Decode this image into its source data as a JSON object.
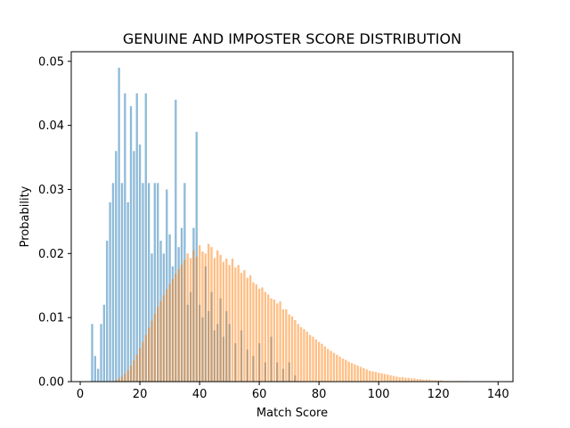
{
  "chart_data": {
    "type": "bar",
    "title": "GENUINE AND IMPOSTER SCORE DISTRIBUTION",
    "xlabel": "Match Score",
    "ylabel": "Probability",
    "xlim": [
      -3,
      145
    ],
    "ylim": [
      0,
      0.0515
    ],
    "x_ticks": [
      0,
      20,
      40,
      60,
      80,
      100,
      120,
      140
    ],
    "y_ticks": [
      0.0,
      0.01,
      0.02,
      0.03,
      0.04,
      0.05
    ],
    "x_tick_labels": [
      "0",
      "20",
      "40",
      "60",
      "80",
      "100",
      "120",
      "140"
    ],
    "y_tick_labels": [
      "0.00",
      "0.01",
      "0.02",
      "0.03",
      "0.04",
      "0.05"
    ],
    "bin_width": 0.7,
    "grid": false,
    "legend": "none",
    "series": [
      {
        "color": "#1f77b4",
        "opacity": 0.5,
        "x": [
          4,
          5,
          6,
          7,
          8,
          9,
          10,
          11,
          12,
          13,
          14,
          15,
          16,
          17,
          18,
          19,
          20,
          21,
          22,
          23,
          24,
          25,
          26,
          27,
          28,
          29,
          30,
          31,
          32,
          33,
          34,
          35,
          36,
          37,
          38,
          39,
          40,
          41,
          42,
          43,
          44,
          45,
          46,
          47,
          48,
          49,
          50,
          52,
          54,
          56,
          58,
          60,
          62,
          64,
          66,
          68,
          70,
          72
        ],
        "values": [
          0.009,
          0.004,
          0.002,
          0.009,
          0.012,
          0.022,
          0.028,
          0.031,
          0.036,
          0.049,
          0.031,
          0.045,
          0.028,
          0.043,
          0.036,
          0.045,
          0.037,
          0.031,
          0.045,
          0.031,
          0.02,
          0.031,
          0.031,
          0.022,
          0.02,
          0.03,
          0.023,
          0.018,
          0.044,
          0.021,
          0.024,
          0.031,
          0.012,
          0.014,
          0.024,
          0.039,
          0.012,
          0.01,
          0.018,
          0.011,
          0.014,
          0.008,
          0.009,
          0.013,
          0.007,
          0.011,
          0.009,
          0.006,
          0.008,
          0.005,
          0.004,
          0.006,
          0.003,
          0.007,
          0.003,
          0.002,
          0.003,
          0.001
        ]
      },
      {
        "color": "#ff7f0e",
        "opacity": 0.5,
        "x": [
          12,
          13,
          14,
          15,
          16,
          17,
          18,
          19,
          20,
          21,
          22,
          23,
          24,
          25,
          26,
          27,
          28,
          29,
          30,
          31,
          32,
          33,
          34,
          35,
          36,
          37,
          38,
          39,
          40,
          41,
          42,
          43,
          44,
          45,
          46,
          47,
          48,
          49,
          50,
          51,
          52,
          53,
          54,
          55,
          56,
          57,
          58,
          59,
          60,
          61,
          62,
          63,
          64,
          65,
          66,
          67,
          68,
          69,
          70,
          71,
          72,
          73,
          74,
          75,
          76,
          77,
          78,
          79,
          80,
          81,
          82,
          83,
          84,
          85,
          86,
          87,
          88,
          89,
          90,
          91,
          92,
          93,
          94,
          95,
          96,
          97,
          98,
          99,
          100,
          101,
          102,
          103,
          104,
          105,
          106,
          107,
          108,
          109,
          110,
          111,
          112,
          113,
          114,
          115,
          116,
          117,
          118,
          119,
          120,
          121,
          122,
          123,
          124,
          125,
          126,
          127,
          128,
          129,
          130,
          131,
          132,
          133,
          134,
          135,
          136,
          137,
          138
        ],
        "values": [
          0.0003,
          0.0005,
          0.0008,
          0.0012,
          0.0018,
          0.0025,
          0.0033,
          0.0042,
          0.0052,
          0.0062,
          0.0073,
          0.0084,
          0.0095,
          0.0106,
          0.0117,
          0.0126,
          0.0135,
          0.0144,
          0.0152,
          0.016,
          0.0168,
          0.0176,
          0.0183,
          0.019,
          0.02,
          0.0193,
          0.0205,
          0.0195,
          0.0213,
          0.0203,
          0.02,
          0.0215,
          0.021,
          0.0193,
          0.0205,
          0.0198,
          0.0187,
          0.0192,
          0.0182,
          0.0192,
          0.0178,
          0.0182,
          0.017,
          0.0174,
          0.0162,
          0.0166,
          0.0155,
          0.0152,
          0.0145,
          0.0147,
          0.014,
          0.0136,
          0.013,
          0.0128,
          0.0122,
          0.0125,
          0.0113,
          0.0113,
          0.0105,
          0.0102,
          0.0096,
          0.009,
          0.0085,
          0.0082,
          0.0078,
          0.0073,
          0.007,
          0.0066,
          0.0062,
          0.0059,
          0.0055,
          0.0051,
          0.0048,
          0.0045,
          0.0042,
          0.0039,
          0.0036,
          0.0034,
          0.0031,
          0.0029,
          0.0027,
          0.0025,
          0.0023,
          0.0021,
          0.0019,
          0.0017,
          0.0016,
          0.0015,
          0.0014,
          0.0013,
          0.0012,
          0.0011,
          0.001,
          0.0009,
          0.0008,
          0.0007,
          0.0007,
          0.0006,
          0.0006,
          0.0005,
          0.0005,
          0.0004,
          0.0004,
          0.0003,
          0.0003,
          0.0003,
          0.0002,
          0.0002,
          0.0002,
          0.0002,
          0.0001,
          0.0001,
          0.0001,
          0.0001,
          0.0001,
          0.0001,
          0.0001,
          0.0001,
          0.0001,
          5e-05,
          5e-05,
          5e-05,
          5e-05,
          5e-05,
          3e-05,
          3e-05,
          3e-05
        ]
      }
    ]
  }
}
